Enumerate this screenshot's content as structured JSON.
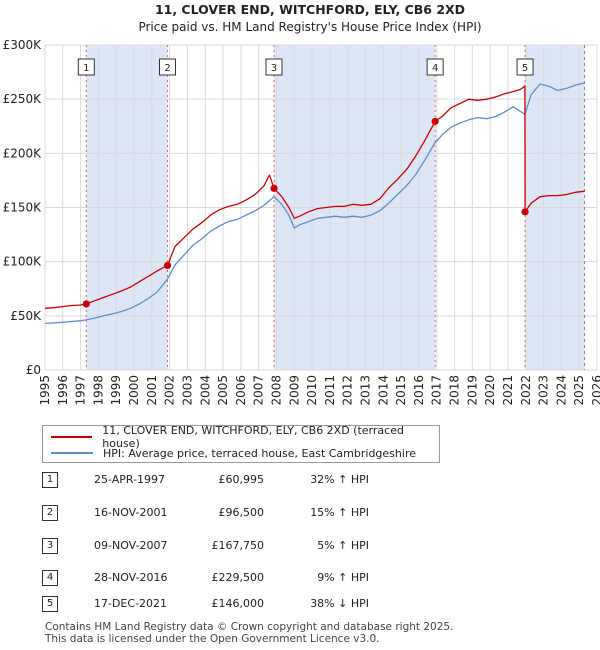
{
  "chart_data": {
    "type": "line",
    "title": "11, CLOVER END, WITCHFORD, ELY, CB6 2XD",
    "subtitle": "Price paid vs. HM Land Registry's House Price Index (HPI)",
    "xlabel": "",
    "ylabel": "",
    "xlim": [
      1995,
      2026
    ],
    "ylim": [
      0,
      300000
    ],
    "x_ticks": [
      "1995",
      "1996",
      "1997",
      "1998",
      "1999",
      "2000",
      "2001",
      "2002",
      "2003",
      "2004",
      "2005",
      "2006",
      "2007",
      "2008",
      "2009",
      "2010",
      "2011",
      "2012",
      "2013",
      "2014",
      "2015",
      "2016",
      "2017",
      "2018",
      "2019",
      "2020",
      "2021",
      "2022",
      "2023",
      "2024",
      "2025",
      "2026"
    ],
    "y_ticks": [
      {
        "value": 0,
        "label": "£0"
      },
      {
        "value": 50000,
        "label": "£50K"
      },
      {
        "value": 100000,
        "label": "£100K"
      },
      {
        "value": 150000,
        "label": "£150K"
      },
      {
        "value": 200000,
        "label": "£200K"
      },
      {
        "value": 250000,
        "label": "£250K"
      },
      {
        "value": 300000,
        "label": "£300K"
      }
    ],
    "grid": true,
    "series": [
      {
        "name": "11, CLOVER END, WITCHFORD, ELY, CB6 2XD (terraced house)",
        "color": "#cc0000",
        "x": [
          1995.0,
          1995.5,
          1996.0,
          1996.5,
          1997.0,
          1997.32,
          1997.8,
          1998.3,
          1998.8,
          1999.3,
          1999.8,
          2000.3,
          2000.8,
          2001.3,
          2001.7,
          2001.88,
          2002.3,
          2002.8,
          2003.3,
          2003.8,
          2004.3,
          2004.8,
          2005.3,
          2005.8,
          2006.3,
          2006.8,
          2007.3,
          2007.6,
          2007.86,
          2008.3,
          2008.7,
          2009.0,
          2009.3,
          2009.8,
          2010.3,
          2010.8,
          2011.3,
          2011.8,
          2012.3,
          2012.8,
          2013.3,
          2013.8,
          2014.3,
          2014.8,
          2015.3,
          2015.8,
          2016.3,
          2016.91,
          2017.3,
          2017.8,
          2018.3,
          2018.8,
          2019.3,
          2019.8,
          2020.3,
          2020.8,
          2021.3,
          2021.7,
          2021.95,
          2021.96,
          2022.3,
          2022.8,
          2023.3,
          2023.8,
          2024.3,
          2024.8,
          2025.3
        ],
        "values": [
          57000,
          57500,
          58500,
          59500,
          60000,
          60995,
          64000,
          67000,
          70000,
          73000,
          76500,
          81500,
          86500,
          91500,
          95000,
          96500,
          114000,
          122000,
          130000,
          136000,
          143000,
          148000,
          151000,
          153000,
          157000,
          162000,
          170000,
          180000,
          167750,
          160000,
          150000,
          140000,
          142000,
          146000,
          149000,
          150000,
          151000,
          151000,
          153000,
          152000,
          153000,
          158000,
          168000,
          176000,
          185000,
          197000,
          211000,
          229500,
          234000,
          242000,
          246000,
          250000,
          249000,
          250000,
          252000,
          255000,
          257000,
          259000,
          262000,
          146000,
          154000,
          160000,
          161000,
          161000,
          162000,
          164000,
          165000
        ]
      },
      {
        "name": "HPI: Average price, terraced house, East Cambridgeshire",
        "color": "#5b8ec9",
        "x": [
          1995.0,
          1995.5,
          1996.0,
          1996.5,
          1997.0,
          1997.32,
          1997.8,
          1998.3,
          1998.8,
          1999.3,
          1999.8,
          2000.3,
          2000.8,
          2001.3,
          2001.88,
          2002.3,
          2002.8,
          2003.3,
          2003.8,
          2004.3,
          2004.8,
          2005.3,
          2005.8,
          2006.3,
          2006.8,
          2007.3,
          2007.86,
          2008.3,
          2008.7,
          2009.0,
          2009.3,
          2009.8,
          2010.3,
          2010.8,
          2011.3,
          2011.8,
          2012.3,
          2012.8,
          2013.3,
          2013.8,
          2014.3,
          2014.8,
          2015.3,
          2015.8,
          2016.3,
          2016.91,
          2017.3,
          2017.8,
          2018.3,
          2018.8,
          2019.3,
          2019.8,
          2020.3,
          2020.8,
          2021.3,
          2021.95,
          2022.3,
          2022.8,
          2023.3,
          2023.8,
          2024.3,
          2024.8,
          2025.3
        ],
        "values": [
          43000,
          43500,
          44000,
          44800,
          45500,
          46200,
          48000,
          50000,
          52000,
          54000,
          57000,
          61000,
          66000,
          72000,
          84000,
          97000,
          106000,
          115000,
          121000,
          128000,
          133000,
          137000,
          139000,
          143000,
          147000,
          152000,
          160000,
          153000,
          143000,
          131000,
          134000,
          137000,
          140000,
          141000,
          142000,
          141000,
          142000,
          141000,
          143000,
          147000,
          154000,
          162000,
          170000,
          180000,
          193000,
          210000,
          217000,
          224000,
          228000,
          231000,
          233000,
          232000,
          234000,
          238000,
          243000,
          236000,
          254000,
          264000,
          262000,
          258000,
          260000,
          263000,
          265000
        ]
      }
    ],
    "sales": [
      {
        "id": "1",
        "x": 1997.32,
        "price": 60995
      },
      {
        "id": "2",
        "x": 2001.88,
        "price": 96500
      },
      {
        "id": "3",
        "x": 2007.86,
        "price": 167750
      },
      {
        "id": "4",
        "x": 2016.91,
        "price": 229500
      },
      {
        "id": "5",
        "x": 2021.96,
        "price": 146000
      }
    ],
    "shaded_periods": [
      [
        1997.32,
        2001.88
      ],
      [
        2007.86,
        2016.91
      ],
      [
        2021.96,
        2025.3
      ]
    ],
    "highlight_colors": {
      "shade": "#dde6f7",
      "vline": "#e06666"
    }
  },
  "legend": {
    "property_label": "11, CLOVER END, WITCHFORD, ELY, CB6 2XD (terraced house)",
    "hpi_label": "HPI: Average price, terraced house, East Cambridgeshire"
  },
  "sales_table": [
    {
      "num": "1",
      "date": "25-APR-1997",
      "price": "£60,995",
      "hpi": "32% ↑ HPI"
    },
    {
      "num": "2",
      "date": "16-NOV-2001",
      "price": "£96,500",
      "hpi": "15% ↑ HPI"
    },
    {
      "num": "3",
      "date": "09-NOV-2007",
      "price": "£167,750",
      "hpi": "5% ↑ HPI"
    },
    {
      "num": "4",
      "date": "28-NOV-2016",
      "price": "£229,500",
      "hpi": "9% ↑ HPI"
    },
    {
      "num": "5",
      "date": "17-DEC-2021",
      "price": "£146,000",
      "hpi": "38% ↓ HPI"
    }
  ],
  "footer": {
    "line1": "Contains HM Land Registry data © Crown copyright and database right 2025.",
    "line2": "This data is licensed under the Open Government Licence v3.0."
  }
}
